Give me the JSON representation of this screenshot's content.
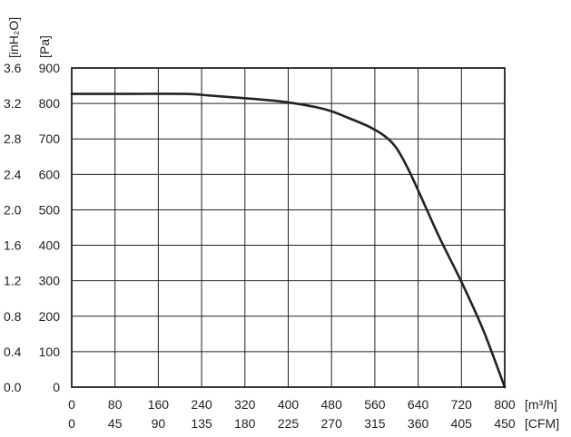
{
  "chart_data": {
    "type": "line",
    "x_unit_primary": "[m³/h]",
    "x_unit_secondary": "[CFM]",
    "y_unit_primary": "[Pa]",
    "y_unit_secondary": "[inH₂O]",
    "x_ticks_primary": [
      "0",
      "80",
      "160",
      "240",
      "320",
      "400",
      "480",
      "560",
      "640",
      "720",
      "800"
    ],
    "x_ticks_secondary": [
      "0",
      "45",
      "90",
      "135",
      "180",
      "225",
      "270",
      "315",
      "360",
      "405",
      "450"
    ],
    "y_ticks_primary": [
      "0",
      "100",
      "200",
      "300",
      "400",
      "500",
      "600",
      "700",
      "800",
      "900"
    ],
    "y_ticks_secondary": [
      "0.0",
      "0.4",
      "0.8",
      "1.2",
      "1.6",
      "2.0",
      "2.4",
      "2.8",
      "3.2",
      "3.6"
    ],
    "xlim": [
      0,
      800
    ],
    "ylim": [
      0,
      900
    ],
    "grid": true,
    "colors": {
      "line": "#222222",
      "grid": "#222222",
      "frame": "#222222"
    },
    "series": [
      {
        "x": [
          0,
          100,
          210,
          250,
          300,
          350,
          400,
          450,
          480,
          510,
          550,
          580,
          600,
          620,
          640,
          680,
          720,
          760,
          800
        ],
        "y": [
          827,
          827,
          827,
          823,
          817,
          811,
          803,
          790,
          778,
          760,
          734,
          706,
          674,
          620,
          555,
          420,
          297,
          162,
          0
        ]
      }
    ]
  }
}
